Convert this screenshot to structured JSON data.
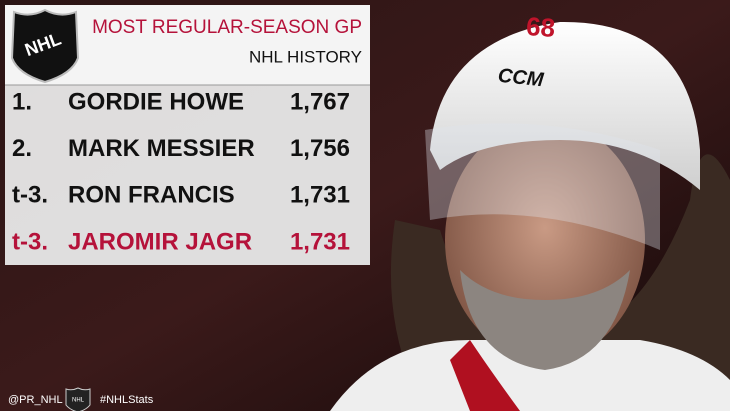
{
  "header": {
    "title": "MOST REGULAR-SEASON GP",
    "subtitle": "NHL HISTORY",
    "logo": "NHL"
  },
  "table": {
    "rows": [
      [
        "1.",
        "GORDIE HOWE",
        "1,767"
      ],
      [
        "2.",
        "MARK MESSIER",
        "1,756"
      ],
      [
        "t-3.",
        "RON FRANCIS",
        "1,731"
      ],
      [
        "t-3.",
        "JAROMIR JAGR",
        "1,731"
      ]
    ]
  },
  "photo": {
    "helmet_brand": "CCM",
    "jersey_number": "68"
  },
  "footer": {
    "handle": "@PR_NHL",
    "logo": "NHL",
    "hashtag": "#NHLStats"
  }
}
